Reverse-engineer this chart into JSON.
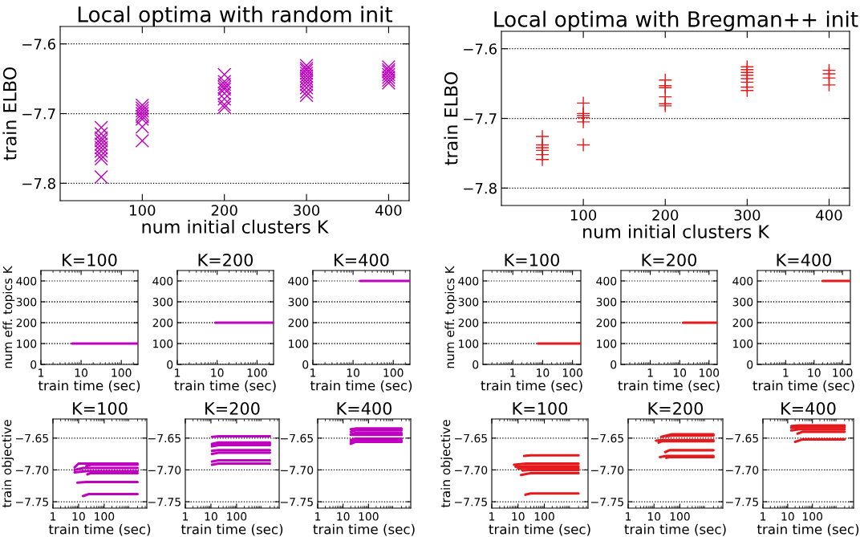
{
  "chart_data": [
    {
      "type": "scatter",
      "title": "Local optima with random init",
      "xlabel": "num initial clusters K",
      "ylabel": "train ELBO",
      "marker": "cross",
      "grid": "y",
      "xlim": [
        0,
        425
      ],
      "xticks": [
        100,
        200,
        300,
        400
      ],
      "ylim": [
        -7.825,
        -7.575
      ],
      "yticks": [
        {
          "value": -7.6,
          "label": "−7.6"
        },
        {
          "value": -7.7,
          "label": "−7.7"
        },
        {
          "value": -7.8,
          "label": "−7.8"
        }
      ],
      "series": [
        {
          "color": "#bf00bf",
          "x": [
            50,
            50,
            50,
            50,
            50,
            50,
            50,
            50,
            50,
            50,
            100,
            100,
            100,
            100,
            100,
            100,
            100,
            100,
            200,
            200,
            200,
            200,
            200,
            200,
            200,
            200,
            200,
            300,
            300,
            300,
            300,
            300,
            300,
            300,
            300,
            300,
            300,
            300,
            400,
            400,
            400,
            400,
            400,
            400,
            400
          ],
          "values": [
            -7.72,
            -7.729,
            -7.735,
            -7.739,
            -7.744,
            -7.749,
            -7.754,
            -7.76,
            -7.765,
            -7.791,
            -7.688,
            -7.692,
            -7.696,
            -7.7,
            -7.704,
            -7.708,
            -7.719,
            -7.739,
            -7.644,
            -7.654,
            -7.658,
            -7.662,
            -7.665,
            -7.671,
            -7.679,
            -7.687,
            -7.691,
            -7.631,
            -7.635,
            -7.638,
            -7.642,
            -7.646,
            -7.65,
            -7.654,
            -7.658,
            -7.663,
            -7.669,
            -7.674,
            -7.633,
            -7.637,
            -7.64,
            -7.644,
            -7.648,
            -7.652,
            -7.656
          ]
        }
      ]
    },
    {
      "type": "scatter",
      "title": "Local optima with Bregman++ init",
      "xlabel": "num initial clusters K",
      "ylabel": "train ELBO",
      "marker": "plus",
      "grid": "y",
      "xlim": [
        0,
        425
      ],
      "xticks": [
        100,
        200,
        300,
        400
      ],
      "ylim": [
        -7.825,
        -7.575
      ],
      "yticks": [
        {
          "value": -7.6,
          "label": "−7.6"
        },
        {
          "value": -7.7,
          "label": "−7.7"
        },
        {
          "value": -7.8,
          "label": "−7.8"
        }
      ],
      "series": [
        {
          "color": "#e41a1c",
          "x": [
            50,
            50,
            50,
            50,
            50,
            50,
            100,
            100,
            100,
            100,
            100,
            100,
            200,
            200,
            200,
            200,
            200,
            200,
            300,
            300,
            300,
            300,
            300,
            300,
            300,
            300,
            400,
            400,
            400,
            400
          ],
          "values": [
            -7.726,
            -7.738,
            -7.742,
            -7.746,
            -7.752,
            -7.759,
            -7.678,
            -7.693,
            -7.696,
            -7.699,
            -7.705,
            -7.738,
            -7.645,
            -7.653,
            -7.656,
            -7.669,
            -7.679,
            -7.682,
            -7.626,
            -7.63,
            -7.634,
            -7.638,
            -7.643,
            -7.648,
            -7.655,
            -7.66,
            -7.631,
            -7.636,
            -7.642,
            -7.652
          ]
        }
      ]
    },
    {
      "type": "line",
      "title": "K=100",
      "xlabel": "train time (sec)",
      "ylabel": "num eff. topics K",
      "log": "x",
      "grid": "y",
      "xlim": [
        1,
        260
      ],
      "xticks": [
        1,
        10,
        100
      ],
      "ylim": [
        0,
        450
      ],
      "yticks": [
        0,
        100,
        200,
        300,
        400
      ],
      "series": [
        {
          "color": "#bf00bf",
          "x": [
            6,
            260
          ],
          "values": [
            100,
            100
          ]
        }
      ]
    },
    {
      "type": "line",
      "title": "K=200",
      "xlabel": "train time (sec)",
      "log": "x",
      "grid": "y",
      "xlim": [
        1,
        260
      ],
      "xticks": [
        1,
        10,
        100
      ],
      "ylim": [
        0,
        450
      ],
      "yticks": [
        0,
        100,
        200,
        300,
        400
      ],
      "series": [
        {
          "color": "#bf00bf",
          "x": [
            9,
            260
          ],
          "values": [
            200,
            200
          ]
        }
      ]
    },
    {
      "type": "line",
      "title": "K=400",
      "xlabel": "train time (sec)",
      "log": "x",
      "grid": "y",
      "xlim": [
        1,
        260
      ],
      "xticks": [
        1,
        10,
        100
      ],
      "ylim": [
        0,
        450
      ],
      "yticks": [
        0,
        100,
        200,
        300,
        400
      ],
      "series": [
        {
          "color": "#bf00bf",
          "x": [
            15,
            260
          ],
          "values": [
            400,
            400
          ]
        }
      ]
    },
    {
      "type": "line",
      "title": "K=100",
      "xlabel": "train time (sec)",
      "ylabel": "num eff. topics K",
      "log": "x",
      "grid": "y",
      "xlim": [
        0.1,
        190
      ],
      "xticks": [
        1,
        10,
        100
      ],
      "ylim": [
        0,
        450
      ],
      "yticks": [
        0,
        100,
        200,
        300,
        400
      ],
      "series": [
        {
          "color": "#e41a1c",
          "x": [
            7,
            190
          ],
          "values": [
            100,
            100
          ]
        }
      ]
    },
    {
      "type": "line",
      "title": "K=200",
      "xlabel": "train time (sec)",
      "log": "x",
      "grid": "y",
      "xlim": [
        0.1,
        190
      ],
      "xticks": [
        1,
        10,
        100
      ],
      "ylim": [
        0,
        450
      ],
      "yticks": [
        0,
        100,
        200,
        300,
        400
      ],
      "series": [
        {
          "color": "#e41a1c",
          "x": [
            13,
            190
          ],
          "values": [
            200,
            200
          ]
        }
      ]
    },
    {
      "type": "line",
      "title": "K=400",
      "xlabel": "train time (sec)",
      "log": "x",
      "grid": "y",
      "xlim": [
        0.1,
        190
      ],
      "xticks": [
        1,
        10,
        100
      ],
      "ylim": [
        0,
        450
      ],
      "yticks": [
        0,
        100,
        200,
        300,
        400
      ],
      "series": [
        {
          "color": "#e41a1c",
          "x": [
            20,
            190
          ],
          "values": [
            400,
            400
          ]
        }
      ]
    },
    {
      "type": "line",
      "title": "K=100",
      "xlabel": "train time (sec)",
      "ylabel": "train objective",
      "log": "x",
      "grid": "y",
      "xlim": [
        1,
        4600
      ],
      "xticks": [
        1,
        10,
        100
      ],
      "ylim": [
        -7.76,
        -7.62
      ],
      "yticks": [
        {
          "value": -7.65,
          "label": "−7.65"
        },
        {
          "value": -7.7,
          "label": "−7.70"
        },
        {
          "value": -7.75,
          "label": "−7.75"
        }
      ],
      "series": [
        {
          "color": "#bf00bf",
          "x": [
            7,
            10,
            2000
          ],
          "values": [
            -7.696,
            -7.69,
            -7.69
          ]
        },
        {
          "color": "#bf00bf",
          "x": [
            20,
            30,
            2000
          ],
          "values": [
            -7.694,
            -7.692,
            -7.692
          ]
        },
        {
          "color": "#bf00bf",
          "x": [
            7,
            15,
            2000
          ],
          "values": [
            -7.7,
            -7.697,
            -7.697
          ]
        },
        {
          "color": "#bf00bf",
          "x": [
            7,
            20,
            2000
          ],
          "values": [
            -7.704,
            -7.702,
            -7.702
          ]
        },
        {
          "color": "#bf00bf",
          "x": [
            22,
            30,
            2000
          ],
          "values": [
            -7.707,
            -7.705,
            -7.705
          ]
        },
        {
          "color": "#bf00bf",
          "x": [
            9,
            20,
            2000
          ],
          "values": [
            -7.72,
            -7.719,
            -7.719
          ]
        },
        {
          "color": "#bf00bf",
          "x": [
            15,
            25,
            2000
          ],
          "values": [
            -7.741,
            -7.738,
            -7.738
          ]
        }
      ]
    },
    {
      "type": "line",
      "title": "K=200",
      "xlabel": "train time (sec)",
      "log": "x",
      "grid": "y",
      "xlim": [
        1,
        4600
      ],
      "xticks": [
        1,
        10,
        100
      ],
      "ylim": [
        -7.76,
        -7.62
      ],
      "yticks": [
        {
          "value": -7.65,
          "label": "−7.65"
        },
        {
          "value": -7.7,
          "label": "−7.70"
        },
        {
          "value": -7.75,
          "label": "−7.75"
        }
      ],
      "series": [
        {
          "color": "#bf00bf",
          "x": [
            11,
            20,
            2000
          ],
          "values": [
            -7.648,
            -7.647,
            -7.647
          ]
        },
        {
          "color": "#bf00bf",
          "x": [
            11,
            20,
            2000
          ],
          "values": [
            -7.659,
            -7.657,
            -7.657
          ]
        },
        {
          "color": "#bf00bf",
          "x": [
            11,
            20,
            2000
          ],
          "values": [
            -7.661,
            -7.659,
            -7.659
          ]
        },
        {
          "color": "#bf00bf",
          "x": [
            11,
            20,
            2000
          ],
          "values": [
            -7.663,
            -7.661,
            -7.661
          ]
        },
        {
          "color": "#bf00bf",
          "x": [
            11,
            20,
            2000
          ],
          "values": [
            -7.67,
            -7.669,
            -7.669
          ]
        },
        {
          "color": "#bf00bf",
          "x": [
            11,
            20,
            2000
          ],
          "values": [
            -7.675,
            -7.673,
            -7.673
          ]
        },
        {
          "color": "#bf00bf",
          "x": [
            11,
            20,
            2000
          ],
          "values": [
            -7.687,
            -7.685,
            -7.685
          ]
        },
        {
          "color": "#bf00bf",
          "x": [
            11,
            20,
            2000
          ],
          "values": [
            -7.692,
            -7.69,
            -7.69
          ]
        }
      ]
    },
    {
      "type": "line",
      "title": "K=400",
      "xlabel": "train time (sec)",
      "log": "x",
      "grid": "y",
      "xlim": [
        1,
        4600
      ],
      "xticks": [
        1,
        10,
        100
      ],
      "ylim": [
        -7.76,
        -7.62
      ],
      "yticks": [
        {
          "value": -7.65,
          "label": "−7.65"
        },
        {
          "value": -7.7,
          "label": "−7.70"
        },
        {
          "value": -7.75,
          "label": "−7.75"
        }
      ],
      "series": [
        {
          "color": "#bf00bf",
          "x": [
            20,
            30,
            2000
          ],
          "values": [
            -7.636,
            -7.635,
            -7.635
          ]
        },
        {
          "color": "#bf00bf",
          "x": [
            20,
            30,
            2000
          ],
          "values": [
            -7.64,
            -7.638,
            -7.638
          ]
        },
        {
          "color": "#bf00bf",
          "x": [
            20,
            30,
            2000
          ],
          "values": [
            -7.644,
            -7.642,
            -7.642
          ]
        },
        {
          "color": "#bf00bf",
          "x": [
            20,
            30,
            2000
          ],
          "values": [
            -7.645,
            -7.645,
            -7.645
          ]
        },
        {
          "color": "#bf00bf",
          "x": [
            20,
            30,
            2000
          ],
          "values": [
            -7.653,
            -7.651,
            -7.651
          ]
        },
        {
          "color": "#bf00bf",
          "x": [
            20,
            30,
            2000
          ],
          "values": [
            -7.656,
            -7.654,
            -7.654
          ]
        },
        {
          "color": "#bf00bf",
          "x": [
            20,
            30,
            2000
          ],
          "values": [
            -7.659,
            -7.656,
            -7.656
          ]
        }
      ]
    },
    {
      "type": "line",
      "title": "K=100",
      "xlabel": "train time (sec)",
      "ylabel": "train objective",
      "log": "x",
      "grid": "y",
      "xlim": [
        1,
        4600
      ],
      "xticks": [
        1,
        10,
        100
      ],
      "ylim": [
        -7.76,
        -7.62
      ],
      "yticks": [
        {
          "value": -7.65,
          "label": "−7.65"
        },
        {
          "value": -7.7,
          "label": "−7.70"
        },
        {
          "value": -7.75,
          "label": "−7.75"
        }
      ],
      "series": [
        {
          "color": "#e41a1c",
          "x": [
            17,
            30,
            2000
          ],
          "values": [
            -7.678,
            -7.677,
            -7.677
          ]
        },
        {
          "color": "#e41a1c",
          "x": [
            7,
            20,
            2000
          ],
          "values": [
            -7.692,
            -7.69,
            -7.69
          ]
        },
        {
          "color": "#e41a1c",
          "x": [
            8,
            20,
            2000
          ],
          "values": [
            -7.695,
            -7.694,
            -7.694
          ]
        },
        {
          "color": "#e41a1c",
          "x": [
            10,
            20,
            2000
          ],
          "values": [
            -7.698,
            -7.697,
            -7.697
          ]
        },
        {
          "color": "#e41a1c",
          "x": [
            15,
            25,
            2000
          ],
          "values": [
            -7.701,
            -7.7,
            -7.7
          ]
        },
        {
          "color": "#e41a1c",
          "x": [
            13,
            30,
            2000
          ],
          "values": [
            -7.708,
            -7.705,
            -7.705
          ]
        },
        {
          "color": "#e41a1c",
          "x": [
            19,
            30,
            2000
          ],
          "values": [
            -7.739,
            -7.737,
            -7.737
          ]
        }
      ]
    },
    {
      "type": "line",
      "title": "K=200",
      "xlabel": "train time (sec)",
      "log": "x",
      "grid": "y",
      "xlim": [
        1,
        4600
      ],
      "xticks": [
        1,
        10,
        100
      ],
      "ylim": [
        -7.76,
        -7.62
      ],
      "yticks": [
        {
          "value": -7.65,
          "label": "−7.65"
        },
        {
          "value": -7.7,
          "label": "−7.70"
        },
        {
          "value": -7.75,
          "label": "−7.75"
        }
      ],
      "series": [
        {
          "color": "#e41a1c",
          "x": [
            19,
            50,
            2000
          ],
          "values": [
            -7.648,
            -7.644,
            -7.644
          ]
        },
        {
          "color": "#e41a1c",
          "x": [
            30,
            50,
            2000
          ],
          "values": [
            -7.647,
            -7.646,
            -7.646
          ]
        },
        {
          "color": "#e41a1c",
          "x": [
            12,
            20,
            2000
          ],
          "values": [
            -7.654,
            -7.653,
            -7.653
          ]
        },
        {
          "color": "#e41a1c",
          "x": [
            15,
            20,
            2000
          ],
          "values": [
            -7.657,
            -7.655,
            -7.655
          ]
        },
        {
          "color": "#e41a1c",
          "x": [
            27,
            40,
            2000
          ],
          "values": [
            -7.672,
            -7.669,
            -7.669
          ]
        },
        {
          "color": "#e41a1c",
          "x": [
            17,
            30,
            2000
          ],
          "values": [
            -7.68,
            -7.678,
            -7.678
          ]
        },
        {
          "color": "#e41a1c",
          "x": [
            30,
            40,
            2000
          ],
          "values": [
            -7.681,
            -7.68,
            -7.68
          ]
        }
      ]
    },
    {
      "type": "line",
      "title": "K=400",
      "xlabel": "train time (sec)",
      "log": "x",
      "grid": "y",
      "xlim": [
        1,
        4600
      ],
      "xticks": [
        1,
        10,
        100
      ],
      "ylim": [
        -7.76,
        -7.62
      ],
      "yticks": [
        {
          "value": -7.65,
          "label": "−7.65"
        },
        {
          "value": -7.7,
          "label": "−7.70"
        },
        {
          "value": -7.75,
          "label": "−7.75"
        }
      ],
      "series": [
        {
          "color": "#e41a1c",
          "x": [
            14,
            30,
            2000
          ],
          "values": [
            -7.631,
            -7.63,
            -7.63
          ]
        },
        {
          "color": "#e41a1c",
          "x": [
            14,
            30,
            2000
          ],
          "values": [
            -7.634,
            -7.633,
            -7.633
          ]
        },
        {
          "color": "#e41a1c",
          "x": [
            14,
            30,
            2000
          ],
          "values": [
            -7.638,
            -7.636,
            -7.636
          ]
        },
        {
          "color": "#e41a1c",
          "x": [
            25,
            40,
            2000
          ],
          "values": [
            -7.643,
            -7.64,
            -7.64
          ]
        },
        {
          "color": "#e41a1c",
          "x": [
            20,
            40,
            2000
          ],
          "values": [
            -7.656,
            -7.652,
            -7.652
          ]
        }
      ]
    }
  ]
}
